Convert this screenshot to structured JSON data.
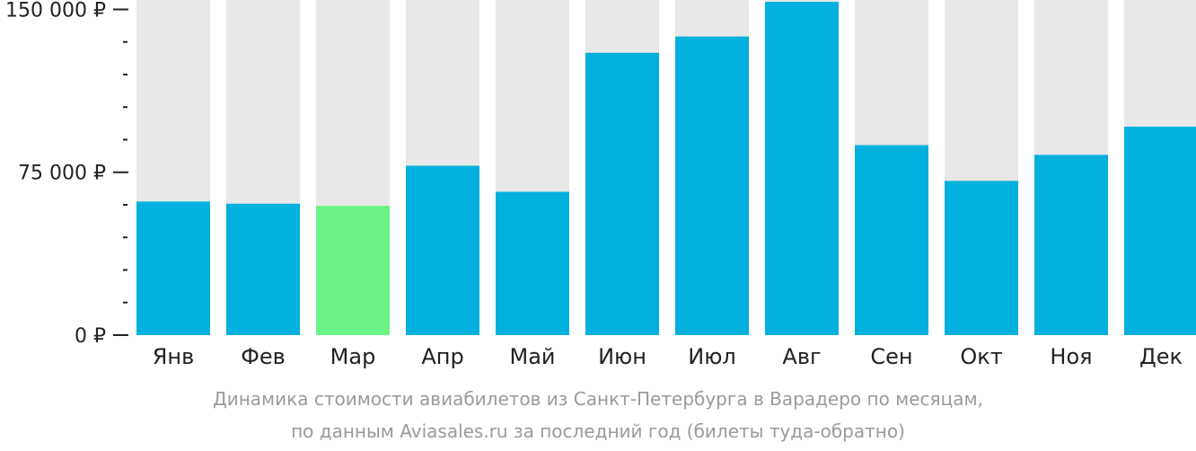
{
  "chart_data": {
    "type": "bar",
    "categories": [
      "Янв",
      "Фев",
      "Мар",
      "Апр",
      "Май",
      "Июн",
      "Июл",
      "Авг",
      "Сен",
      "Окт",
      "Ноя",
      "Дек"
    ],
    "values": [
      61500,
      60500,
      59500,
      78000,
      66000,
      130000,
      137500,
      153500,
      87500,
      71000,
      83000,
      96000
    ],
    "highlight_index": 2,
    "ylim": [
      0,
      153500
    ],
    "yticks": [
      0,
      75000,
      150000
    ],
    "ytick_labels": [
      "0 ₽",
      "75 000 ₽",
      "150 000 ₽"
    ],
    "minor_tick_step": 15000,
    "colors": {
      "bar": "#01b0dd",
      "highlight": "#6cf386",
      "background_bar": "#e8e8e8",
      "axis": "#222222"
    },
    "grid": false,
    "legend": "none",
    "caption_lines": [
      "Динамика стоимости авиабилетов из Санкт-Петербурга в Варадеро по месяцам,",
      "по данным Aviasales.ru за последний год (билеты туда-обратно)"
    ]
  }
}
